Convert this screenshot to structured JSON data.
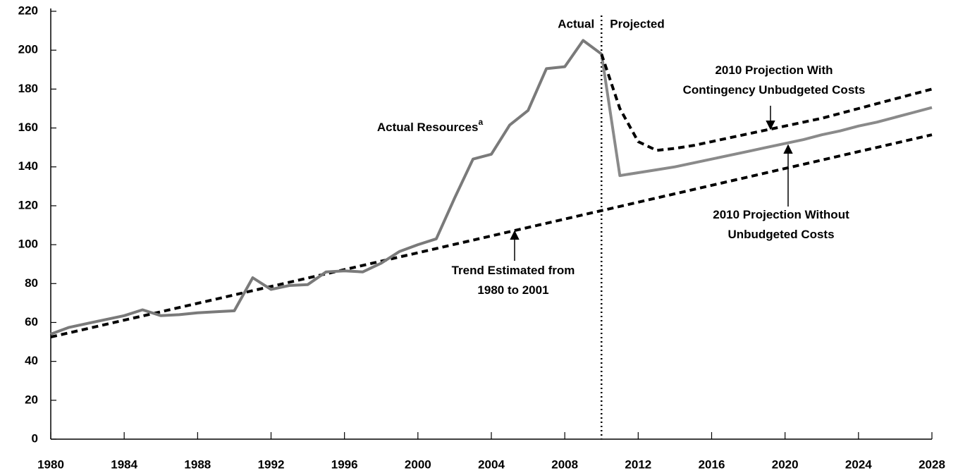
{
  "chart_data": {
    "type": "line",
    "xlim": [
      1980,
      2028
    ],
    "xticks": [
      1980,
      1984,
      1988,
      1992,
      1996,
      2000,
      2004,
      2008,
      2012,
      2016,
      2020,
      2024,
      2028
    ],
    "ylim": [
      0,
      220
    ],
    "yticks": [
      0,
      20,
      40,
      60,
      80,
      100,
      120,
      140,
      160,
      180,
      200,
      220
    ],
    "divider": {
      "x": 2010,
      "left": "Actual",
      "right": "Projected"
    },
    "series": [
      {
        "label": [
          "Trend Estimated from",
          "1980 to 2001"
        ],
        "color": "#000000",
        "dashed": true,
        "x": [
          1980,
          2028
        ],
        "values": [
          52.5,
          156.5
        ]
      },
      {
        "label": [
          "2010 Projection Without",
          "Unbudgeted Costs"
        ],
        "color": "#8a8a8a",
        "dashed": false,
        "x": [
          2010,
          2011,
          2012,
          2013,
          2014,
          2015,
          2016,
          2017,
          2018,
          2019,
          2020,
          2021,
          2022,
          2023,
          2024,
          2025,
          2026,
          2027,
          2028
        ],
        "values": [
          198,
          135.5,
          137,
          138.5,
          140,
          142,
          144,
          146,
          148,
          150,
          152,
          154,
          156.5,
          158.5,
          161,
          163,
          165.5,
          168,
          170.5
        ]
      },
      {
        "label": [
          "2010 Projection With",
          "Contingency Unbudgeted Costs"
        ],
        "color": "#000000",
        "dashed": true,
        "x": [
          2010,
          2011,
          2012,
          2013,
          2014,
          2015,
          2016,
          2017,
          2018,
          2019,
          2020,
          2021,
          2022,
          2023,
          2024,
          2025,
          2026,
          2027,
          2028
        ],
        "values": [
          198,
          170,
          153,
          148.5,
          149.5,
          151,
          153,
          155,
          157,
          159,
          161,
          163,
          165,
          167.5,
          170,
          172.5,
          175,
          177.5,
          180
        ]
      },
      {
        "label": [
          "Actual Resources"
        ],
        "note": "a",
        "color": "#7a7a7a",
        "dashed": false,
        "x": [
          1980,
          1981,
          1982,
          1983,
          1984,
          1985,
          1986,
          1987,
          1988,
          1989,
          1990,
          1991,
          1992,
          1993,
          1994,
          1995,
          1996,
          1997,
          1998,
          1999,
          2000,
          2001,
          2002,
          2003,
          2004,
          2005,
          2006,
          2007,
          2008,
          2009,
          2010
        ],
        "values": [
          54,
          57.5,
          59.5,
          61.5,
          63.5,
          66.5,
          63.5,
          64,
          65,
          65.5,
          66,
          83,
          77,
          79,
          79.5,
          86,
          86.5,
          86,
          90.5,
          96.5,
          100,
          103,
          124,
          144,
          146.5,
          161.5,
          169,
          190.5,
          191.5,
          205,
          198
        ]
      }
    ]
  }
}
